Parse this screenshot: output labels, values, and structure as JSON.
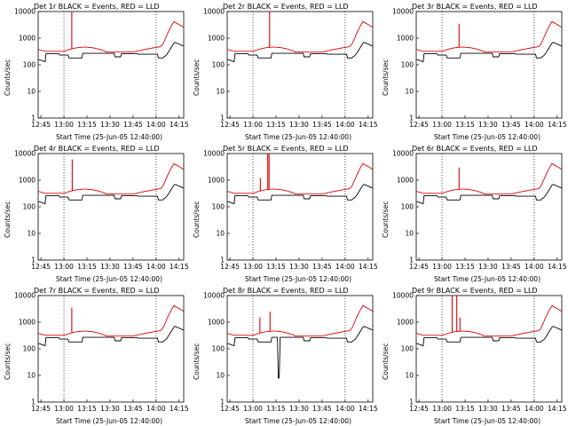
{
  "chart_data": [
    {
      "type": "line",
      "title": "Det 1r BLACK = Events, RED = LLD",
      "xlabel": "Start Time (25-Jun-05 12:40:00)",
      "ylabel": "Counts/sec",
      "yscale": "log",
      "ylim": [
        1,
        10000
      ],
      "xlim": [
        12.72,
        14.3
      ],
      "x_tick_labels": [
        "12:45",
        "13:00",
        "13:15",
        "13:30",
        "13:45",
        "14:00",
        "14:15"
      ],
      "y_tick_labels": [
        "1",
        "10",
        "100",
        "1000",
        "10000"
      ],
      "spikes": [
        {
          "x": 13.085,
          "y": 10000
        }
      ],
      "series": [
        {
          "name": "Events",
          "color": "#000000"
        },
        {
          "name": "LLD",
          "color": "#e00000"
        }
      ]
    },
    {
      "type": "line",
      "title": "Det 2r BLACK = Events, RED = LLD",
      "xlabel": "Start Time (25-Jun-05 12:40:00)",
      "ylabel": "Counts/sec",
      "yscale": "log",
      "ylim": [
        1,
        10000
      ],
      "xlim": [
        12.72,
        14.3
      ],
      "x_tick_labels": [
        "12:45",
        "13:00",
        "13:15",
        "13:30",
        "13:45",
        "14:00",
        "14:15"
      ],
      "y_tick_labels": [
        "1",
        "10",
        "100",
        "1000",
        "10000"
      ],
      "spikes": [
        {
          "x": 13.18,
          "y": 10000
        }
      ],
      "series": [
        {
          "name": "Events",
          "color": "#000000"
        },
        {
          "name": "LLD",
          "color": "#e00000"
        }
      ]
    },
    {
      "type": "line",
      "title": "Det 3r BLACK = Events, RED = LLD",
      "xlabel": "Start Time (25-Jun-05 12:40:00)",
      "ylabel": "Counts/sec",
      "yscale": "log",
      "ylim": [
        1,
        10000
      ],
      "xlim": [
        12.72,
        14.3
      ],
      "x_tick_labels": [
        "12:45",
        "13:00",
        "13:15",
        "13:30",
        "13:45",
        "14:00",
        "14:15"
      ],
      "y_tick_labels": [
        "1",
        "10",
        "100",
        "1000",
        "10000"
      ],
      "spikes": [
        {
          "x": 13.185,
          "y": 3500
        }
      ],
      "series": [
        {
          "name": "Events",
          "color": "#000000"
        },
        {
          "name": "LLD",
          "color": "#e00000"
        }
      ]
    },
    {
      "type": "line",
      "title": "Det 4r BLACK = Events, RED = LLD",
      "xlabel": "Start Time (25-Jun-05 12:40:00)",
      "ylabel": "Counts/sec",
      "yscale": "log",
      "ylim": [
        1,
        10000
      ],
      "xlim": [
        12.72,
        14.3
      ],
      "x_tick_labels": [
        "12:45",
        "13:00",
        "13:15",
        "13:30",
        "13:45",
        "14:00",
        "14:15"
      ],
      "y_tick_labels": [
        "1",
        "10",
        "100",
        "1000",
        "10000"
      ],
      "spikes": [
        {
          "x": 13.09,
          "y": 6000
        }
      ],
      "series": [
        {
          "name": "Events",
          "color": "#000000"
        },
        {
          "name": "LLD",
          "color": "#e00000"
        }
      ]
    },
    {
      "type": "line",
      "title": "Det 5r BLACK = Events, RED = LLD",
      "xlabel": "Start Time (25-Jun-05 12:40:00)",
      "ylabel": "Counts/sec",
      "yscale": "log",
      "ylim": [
        1,
        10000
      ],
      "xlim": [
        12.72,
        14.3
      ],
      "x_tick_labels": [
        "12:45",
        "13:00",
        "13:15",
        "13:30",
        "13:45",
        "14:00",
        "14:15"
      ],
      "y_tick_labels": [
        "1",
        "10",
        "100",
        "1000",
        "10000"
      ],
      "spikes": [
        {
          "x": 13.08,
          "y": 1200
        },
        {
          "x": 13.16,
          "y": 10000
        },
        {
          "x": 13.175,
          "y": 10000
        }
      ],
      "series": [
        {
          "name": "Events",
          "color": "#000000"
        },
        {
          "name": "LLD",
          "color": "#e00000"
        }
      ]
    },
    {
      "type": "line",
      "title": "Det 6r BLACK = Events, RED = LLD",
      "xlabel": "Start Time (25-Jun-05 12:40:00)",
      "ylabel": "Counts/sec",
      "yscale": "log",
      "ylim": [
        1,
        10000
      ],
      "xlim": [
        12.72,
        14.3
      ],
      "x_tick_labels": [
        "12:45",
        "13:00",
        "13:15",
        "13:30",
        "13:45",
        "14:00",
        "14:15"
      ],
      "y_tick_labels": [
        "1",
        "10",
        "100",
        "1000",
        "10000"
      ],
      "spikes": [
        {
          "x": 13.185,
          "y": 3000
        }
      ],
      "series": [
        {
          "name": "Events",
          "color": "#000000"
        },
        {
          "name": "LLD",
          "color": "#e00000"
        }
      ]
    },
    {
      "type": "line",
      "title": "Det 7r BLACK = Events, RED = LLD",
      "xlabel": "Start Time (25-Jun-05 12:40:00)",
      "ylabel": "Counts/sec",
      "yscale": "log",
      "ylim": [
        1,
        10000
      ],
      "xlim": [
        12.72,
        14.3
      ],
      "x_tick_labels": [
        "12:45",
        "13:00",
        "13:15",
        "13:30",
        "13:45",
        "14:00",
        "14:15"
      ],
      "y_tick_labels": [
        "1",
        "10",
        "100",
        "1000",
        "10000"
      ],
      "spikes": [
        {
          "x": 13.085,
          "y": 3500
        }
      ],
      "series": [
        {
          "name": "Events",
          "color": "#000000"
        },
        {
          "name": "LLD",
          "color": "#e00000"
        }
      ]
    },
    {
      "type": "line",
      "title": "Det 8r BLACK = Events, RED = LLD",
      "xlabel": "Start Time (25-Jun-05 12:40:00)",
      "ylabel": "Counts/sec",
      "yscale": "log",
      "ylim": [
        1,
        10000
      ],
      "xlim": [
        12.72,
        14.3
      ],
      "x_tick_labels": [
        "12:45",
        "13:00",
        "13:15",
        "13:30",
        "13:45",
        "14:00",
        "14:15"
      ],
      "y_tick_labels": [
        "1",
        "10",
        "100",
        "1000",
        "10000"
      ],
      "spikes": [
        {
          "x": 13.075,
          "y": 1500
        },
        {
          "x": 13.185,
          "y": 2500
        }
      ],
      "dip": {
        "x": 13.28,
        "y": 8
      },
      "series": [
        {
          "name": "Events",
          "color": "#000000"
        },
        {
          "name": "LLD",
          "color": "#e00000"
        }
      ]
    },
    {
      "type": "line",
      "title": "Det 9r BLACK = Events, RED = LLD",
      "xlabel": "Start Time (25-Jun-05 12:40:00)",
      "ylabel": "Counts/sec",
      "yscale": "log",
      "ylim": [
        1,
        10000
      ],
      "xlim": [
        12.72,
        14.3
      ],
      "x_tick_labels": [
        "12:45",
        "13:00",
        "13:15",
        "13:30",
        "13:45",
        "14:00",
        "14:15"
      ],
      "y_tick_labels": [
        "1",
        "10",
        "100",
        "1000",
        "10000"
      ],
      "spikes": [
        {
          "x": 13.11,
          "y": 10000
        },
        {
          "x": 13.16,
          "y": 10000
        },
        {
          "x": 13.195,
          "y": 1500
        }
      ],
      "series": [
        {
          "name": "Events",
          "color": "#000000"
        },
        {
          "name": "LLD",
          "color": "#e00000"
        }
      ]
    }
  ]
}
